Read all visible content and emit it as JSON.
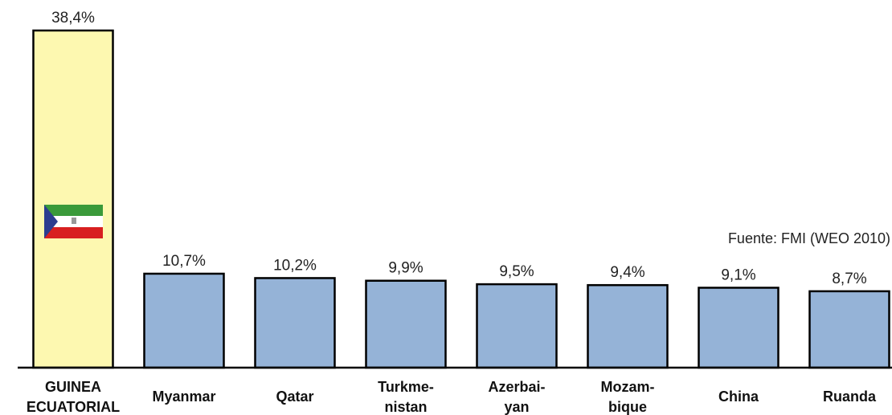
{
  "chart_data": {
    "type": "bar",
    "categories": [
      "GUINEA\nECUATORIAL",
      "Myanmar",
      "Qatar",
      "Turkme-\nnistan",
      "Azerbai-\nyan",
      "Mozam-\nbique",
      "China",
      "Ruanda"
    ],
    "values": [
      38.4,
      10.7,
      10.2,
      9.9,
      9.5,
      9.4,
      9.1,
      8.7
    ],
    "value_labels": [
      "38,4%",
      "10,7%",
      "10,2%",
      "9,9%",
      "9,5%",
      "9,4%",
      "9,1%",
      "8,7%"
    ],
    "colors": [
      "#fdf8b0",
      "#95b3d7",
      "#95b3d7",
      "#95b3d7",
      "#95b3d7",
      "#95b3d7",
      "#95b3d7",
      "#95b3d7"
    ],
    "source": "Fuente: FMI (WEO 2010)"
  }
}
